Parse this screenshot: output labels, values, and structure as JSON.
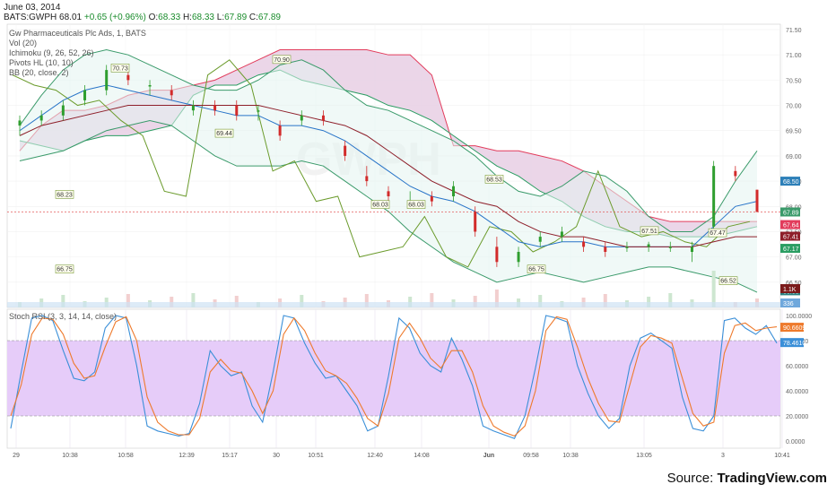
{
  "header": {
    "date": "June 03, 2014",
    "symbol": "BATS:GWPH",
    "last": "68.01",
    "change": "+0.65 (+0.96%)",
    "open_label": "O:",
    "open": "68.33",
    "high_label": "H:",
    "high": "68.33",
    "low_label": "L:",
    "low": "67.89",
    "close_label": "C:",
    "close": "67.89"
  },
  "indicators": [
    "Gw Pharmaceuticals Plc Ads, 1, BATS",
    "Vol (20)",
    "Ichimoku (9, 26, 52, 26)",
    "Pivots HL (10, 10)",
    "BB (20, close, 2)"
  ],
  "watermark": "GWPH",
  "rsi_label": "Stoch RSI (3, 3, 14, 14, close)",
  "source": {
    "prefix": "Source: ",
    "name": "TradingView.com"
  },
  "colors": {
    "candle_up": "#2f9e2f",
    "candle_down": "#d22b2b",
    "ichimoku_cloud_bull": "#cfeee8",
    "ichimoku_cloud_bear": "#e7cfe4",
    "senkou_a": "#2a9d62",
    "senkou_b": "#e23c5c",
    "chikou": "#6b9b2c",
    "tenkan": "#2874c8",
    "kijun": "#8e1f2a",
    "bb": "#3a9a6a",
    "bb_fill": "#e3f4f1",
    "rsi_band": "#e6ccf9",
    "rsi_k": "#3a8fd8",
    "rsi_d": "#ee7a2c"
  },
  "chart_data": [
    {
      "type": "candlestick",
      "title": "Gw Pharmaceuticals Plc Ads, 1, BATS",
      "x_ticks": [
        "29",
        "10:38",
        "10:58",
        "12:39",
        "15:17",
        "30",
        "10:51",
        "12:40",
        "14:08",
        "Jun",
        "09:58",
        "10:38",
        "13:05",
        "3",
        "10:41"
      ],
      "ylim": [
        66.0,
        71.5
      ],
      "y_ticks": [
        "71.50",
        "71.00",
        "70.50",
        "70.00",
        "69.50",
        "69.00",
        "68.50",
        "68.00",
        "67.50",
        "67.00",
        "66.50"
      ],
      "price_scale_badges": [
        {
          "label": "68.50",
          "value": 68.5,
          "color": "#2c7fb8"
        },
        {
          "label": "67.89",
          "value": 67.89,
          "color": "#3a9a6a"
        },
        {
          "label": "67.64",
          "value": 67.64,
          "color": "#e23c5c"
        },
        {
          "label": "67.41",
          "value": 67.41,
          "color": "#8e1f2a"
        },
        {
          "label": "67.17",
          "value": 67.17,
          "color": "#2a9d62"
        },
        {
          "label": "66.33",
          "value": 66.33,
          "color": "#2a7f7f"
        },
        {
          "label": "1.1K",
          "value": null,
          "color": "#7a1a1a"
        },
        {
          "label": "336",
          "value": null,
          "color": "#6fa8dc"
        }
      ],
      "pivot_labels": [
        {
          "label": "70.73",
          "x": "10:58",
          "value": 70.73
        },
        {
          "label": "70.90",
          "x": "30",
          "value": 70.9
        },
        {
          "label": "69.44",
          "x": "15:17",
          "value": 69.44
        },
        {
          "label": "68.03",
          "x": "12:40",
          "value": 68.03
        },
        {
          "label": "68.03",
          "x": "14:08",
          "value": 68.03
        },
        {
          "label": "68.53",
          "x": "Jun",
          "value": 68.53
        },
        {
          "label": "68.23",
          "x": "10:38",
          "value": 68.23
        },
        {
          "label": "67.51",
          "x": "13:05",
          "value": 67.51
        },
        {
          "label": "67.47",
          "x": "3",
          "value": 67.47
        },
        {
          "label": "66.75",
          "x": "09:58",
          "value": 66.75
        },
        {
          "label": "66.75",
          "x": "10:38",
          "value": 66.75
        },
        {
          "label": "66.52",
          "x": "3",
          "value": 66.52
        }
      ],
      "candles": [
        {
          "o": 69.6,
          "h": 69.8,
          "l": 69.4,
          "c": 69.7
        },
        {
          "o": 69.7,
          "h": 69.9,
          "l": 69.6,
          "c": 69.8
        },
        {
          "o": 69.8,
          "h": 70.1,
          "l": 69.7,
          "c": 70.0
        },
        {
          "o": 70.1,
          "h": 70.4,
          "l": 70.0,
          "c": 70.3
        },
        {
          "o": 70.3,
          "h": 70.8,
          "l": 70.2,
          "c": 70.7
        },
        {
          "o": 70.6,
          "h": 70.7,
          "l": 70.4,
          "c": 70.5
        },
        {
          "o": 70.4,
          "h": 70.5,
          "l": 70.2,
          "c": 70.4
        },
        {
          "o": 70.3,
          "h": 70.4,
          "l": 70.1,
          "c": 70.2
        },
        {
          "o": 69.9,
          "h": 70.1,
          "l": 69.8,
          "c": 70.0
        },
        {
          "o": 70.0,
          "h": 70.1,
          "l": 69.8,
          "c": 69.9
        },
        {
          "o": 70.0,
          "h": 70.1,
          "l": 69.7,
          "c": 69.8
        },
        {
          "o": 69.9,
          "h": 70.0,
          "l": 69.7,
          "c": 69.9
        },
        {
          "o": 69.6,
          "h": 69.7,
          "l": 69.3,
          "c": 69.4
        },
        {
          "o": 69.7,
          "h": 69.9,
          "l": 69.6,
          "c": 69.8
        },
        {
          "o": 69.8,
          "h": 69.9,
          "l": 69.6,
          "c": 69.7
        },
        {
          "o": 69.2,
          "h": 69.3,
          "l": 68.9,
          "c": 69.0
        },
        {
          "o": 68.6,
          "h": 68.8,
          "l": 68.4,
          "c": 68.5
        },
        {
          "o": 68.3,
          "h": 68.4,
          "l": 68.1,
          "c": 68.2
        },
        {
          "o": 68.1,
          "h": 68.3,
          "l": 68.0,
          "c": 68.1
        },
        {
          "o": 68.2,
          "h": 68.3,
          "l": 68.0,
          "c": 68.1
        },
        {
          "o": 68.2,
          "h": 68.5,
          "l": 68.1,
          "c": 68.4
        },
        {
          "o": 67.9,
          "h": 68.0,
          "l": 67.4,
          "c": 67.5
        },
        {
          "o": 67.2,
          "h": 67.4,
          "l": 66.8,
          "c": 66.9
        },
        {
          "o": 66.9,
          "h": 67.2,
          "l": 66.8,
          "c": 67.1
        },
        {
          "o": 67.3,
          "h": 67.5,
          "l": 67.2,
          "c": 67.4
        },
        {
          "o": 67.4,
          "h": 67.6,
          "l": 67.3,
          "c": 67.5
        },
        {
          "o": 67.3,
          "h": 67.4,
          "l": 67.1,
          "c": 67.2
        },
        {
          "o": 67.2,
          "h": 67.3,
          "l": 67.0,
          "c": 67.1
        },
        {
          "o": 67.2,
          "h": 67.3,
          "l": 67.1,
          "c": 67.2
        },
        {
          "o": 67.2,
          "h": 67.3,
          "l": 67.1,
          "c": 67.25
        },
        {
          "o": 67.2,
          "h": 67.3,
          "l": 67.1,
          "c": 67.2
        },
        {
          "o": 67.1,
          "h": 67.3,
          "l": 66.9,
          "c": 67.2
        },
        {
          "o": 67.6,
          "h": 68.9,
          "l": 67.5,
          "c": 68.8
        },
        {
          "o": 68.7,
          "h": 68.8,
          "l": 68.5,
          "c": 68.6
        },
        {
          "o": 68.33,
          "h": 68.33,
          "l": 67.89,
          "c": 67.89
        }
      ]
    },
    {
      "type": "line",
      "title": "Stoch RSI (3, 3, 14, 14, close)",
      "ylim": [
        0,
        100
      ],
      "y_ticks": [
        "100.0000",
        "80.0000",
        "60.0000",
        "40.0000",
        "20.0000",
        "0.0000"
      ],
      "band": [
        20,
        80
      ],
      "last_values": {
        "d": "90.6609",
        "k": "78.4610"
      },
      "series": [
        {
          "key": "K",
          "values": [
            10,
            55,
            98,
            100,
            96,
            72,
            50,
            48,
            55,
            90,
            100,
            98,
            60,
            12,
            8,
            6,
            4,
            6,
            30,
            72,
            60,
            52,
            55,
            28,
            15,
            55,
            100,
            98,
            78,
            62,
            50,
            52,
            40,
            28,
            8,
            12,
            52,
            98,
            90,
            70,
            60,
            55,
            82,
            65,
            44,
            12,
            8,
            5,
            2,
            20,
            58,
            100,
            98,
            95,
            60,
            38,
            20,
            10,
            18,
            60,
            82,
            86,
            80,
            74,
            35,
            10,
            8,
            20,
            96,
            98,
            90,
            85,
            92,
            78
          ]
        },
        {
          "key": "D",
          "values": [
            20,
            45,
            85,
            98,
            97,
            85,
            62,
            50,
            52,
            75,
            95,
            99,
            80,
            35,
            15,
            8,
            5,
            5,
            18,
            55,
            65,
            56,
            54,
            40,
            22,
            40,
            85,
            98,
            88,
            70,
            56,
            52,
            46,
            34,
            18,
            12,
            38,
            82,
            94,
            82,
            66,
            58,
            72,
            72,
            55,
            28,
            12,
            7,
            4,
            12,
            40,
            88,
            99,
            97,
            75,
            50,
            30,
            16,
            15,
            45,
            75,
            84,
            82,
            78,
            50,
            22,
            12,
            15,
            70,
            92,
            94,
            88,
            90,
            91
          ]
        }
      ]
    }
  ]
}
